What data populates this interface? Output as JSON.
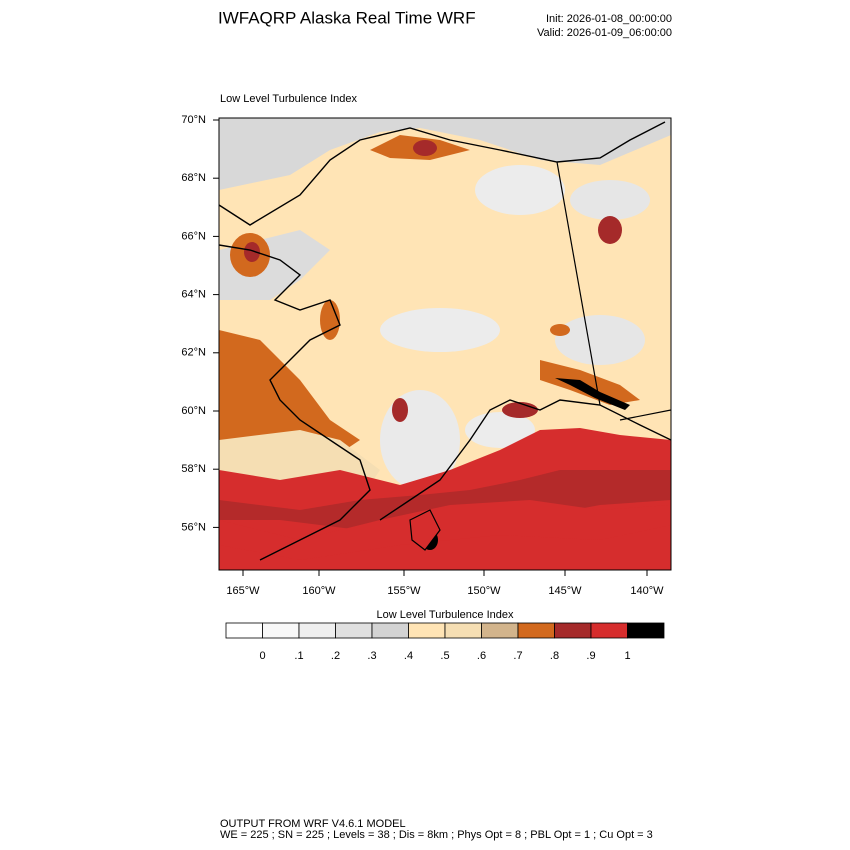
{
  "header": {
    "title": "IWFAQRP Alaska Real Time WRF",
    "init": "Init: 2026-01-08_00:00:00",
    "valid": "Valid: 2026-01-09_06:00:00"
  },
  "map": {
    "title": "Low Level Turbulence Index",
    "lat_labels": [
      "70°N",
      "68°N",
      "66°N",
      "64°N",
      "62°N",
      "60°N",
      "58°N",
      "56°N"
    ],
    "lon_labels": [
      "165°W",
      "160°W",
      "155°W",
      "150°W",
      "145°W",
      "140°W"
    ]
  },
  "colorbar": {
    "title": "Low Level Turbulence Index",
    "colors": [
      "#ffffff",
      "#f8f8f8",
      "#efefef",
      "#e0e0e0",
      "#d3d3d3",
      "#ffe4b5",
      "#f5deb3",
      "#d2b48c",
      "#d2691e",
      "#a52a2a",
      "#d62d2d",
      "#000000"
    ],
    "tick_labels": [
      "0",
      ".1",
      ".2",
      ".3",
      ".4",
      ".5",
      ".6",
      ".7",
      ".8",
      ".9",
      "1"
    ]
  },
  "footer": {
    "line1": "OUTPUT FROM WRF V4.6.1 MODEL",
    "line2": "WE = 225 ; SN = 225 ; Levels = 38 ; Dis = 8km ; Phys Opt = 8 ; PBL Opt = 1 ; Cu Opt = 3"
  }
}
